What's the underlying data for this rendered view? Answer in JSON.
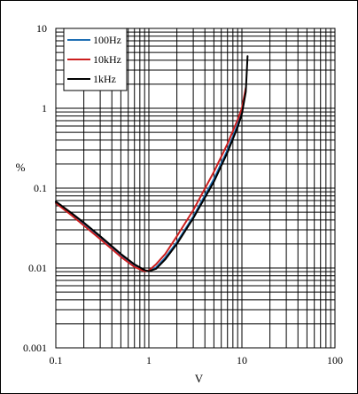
{
  "chart_data": {
    "type": "line",
    "xscale": "log",
    "yscale": "log",
    "xlim": [
      0.1,
      100
    ],
    "ylim": [
      0.001,
      10
    ],
    "xlabel": "V",
    "ylabel": "%",
    "grid": true,
    "legend_position": "top-left",
    "x_ticks": [
      "0.1",
      "1",
      "10",
      "100"
    ],
    "y_ticks": [
      "0.001",
      "0.01",
      "0.1",
      "1",
      "10"
    ],
    "series": [
      {
        "name": "100Hz",
        "color": "#1f6fb4",
        "x": [
          0.1,
          0.15,
          0.2,
          0.3,
          0.5,
          0.7,
          0.9,
          1.0,
          1.2,
          1.5,
          2,
          3,
          5,
          7,
          9,
          10,
          11
        ],
        "y": [
          0.067,
          0.047,
          0.036,
          0.024,
          0.0145,
          0.0108,
          0.0093,
          0.0091,
          0.0102,
          0.0135,
          0.021,
          0.044,
          0.13,
          0.3,
          0.62,
          0.9,
          1.7
        ]
      },
      {
        "name": "10kHz",
        "color": "#cc1f1f",
        "x": [
          0.1,
          0.15,
          0.2,
          0.3,
          0.5,
          0.7,
          0.9,
          1.0,
          1.2,
          1.5,
          2,
          3,
          5,
          7,
          9,
          10,
          11
        ],
        "y": [
          0.065,
          0.045,
          0.034,
          0.023,
          0.0138,
          0.0103,
          0.0091,
          0.0093,
          0.0112,
          0.015,
          0.025,
          0.053,
          0.16,
          0.36,
          0.72,
          1.0,
          1.8
        ]
      },
      {
        "name": "1kHz",
        "color": "#000000",
        "x": [
          0.1,
          0.15,
          0.2,
          0.3,
          0.5,
          0.7,
          0.9,
          1.0,
          1.2,
          1.5,
          2,
          3,
          5,
          7,
          9,
          10,
          11,
          11.5
        ],
        "y": [
          0.068,
          0.048,
          0.037,
          0.025,
          0.015,
          0.0111,
          0.0094,
          0.0091,
          0.0098,
          0.0128,
          0.02,
          0.042,
          0.12,
          0.28,
          0.58,
          0.85,
          1.6,
          4.5
        ]
      }
    ]
  }
}
